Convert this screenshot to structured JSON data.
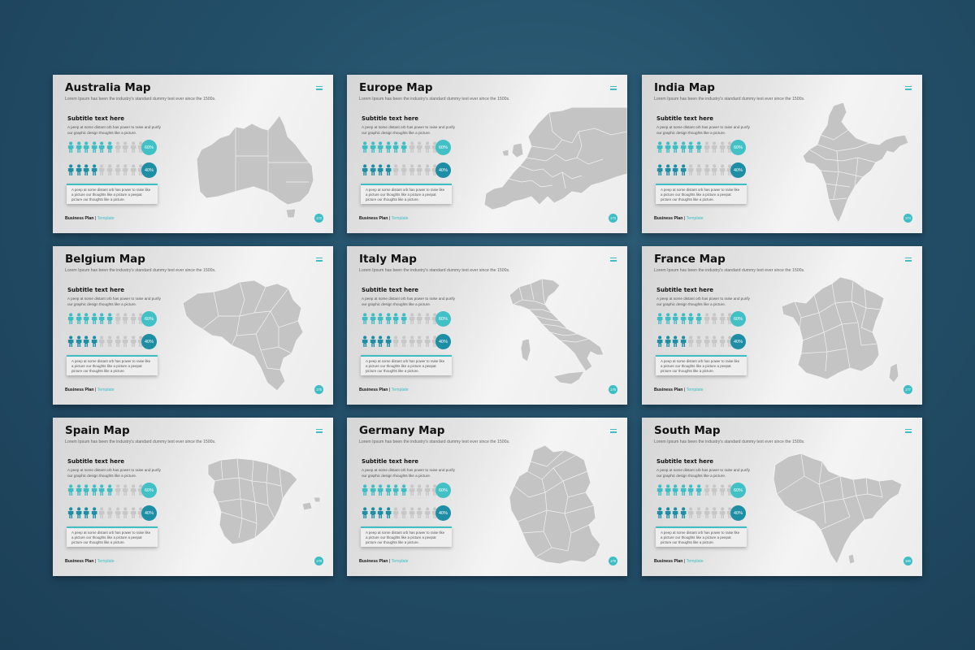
{
  "common": {
    "lead": "Lorem Ipsum has been the industry's standard dummy text ever since the 1500s.",
    "subtitle": "Subtitle text here",
    "description": "A peep at some distant orb has power to raise and purify our graphic design thoughts like a picture.",
    "stat1": "60%",
    "stat2": "40%",
    "note": "A peep at some distant orb has power to raise like a picture our thoughts like a picture a peepat picture our thoughts like a picture.",
    "footer_brand": "Business Plan",
    "footer_sep": "|",
    "footer_tag": "Template",
    "accent_color": "#3dbdc4",
    "accent_dark": "#1d8ea4",
    "icon_name": "person-icon"
  },
  "slides": [
    {
      "title": "Australia Map",
      "page": "172"
    },
    {
      "title": "Europe Map",
      "page": "173"
    },
    {
      "title": "India Map",
      "page": "174"
    },
    {
      "title": "Belgium Map",
      "page": "175"
    },
    {
      "title": "Italy Map",
      "page": "176"
    },
    {
      "title": "France Map",
      "page": "177"
    },
    {
      "title": "Spain Map",
      "page": "178"
    },
    {
      "title": "Germany Map",
      "page": "179"
    },
    {
      "title": "South Map",
      "page": "180"
    }
  ]
}
